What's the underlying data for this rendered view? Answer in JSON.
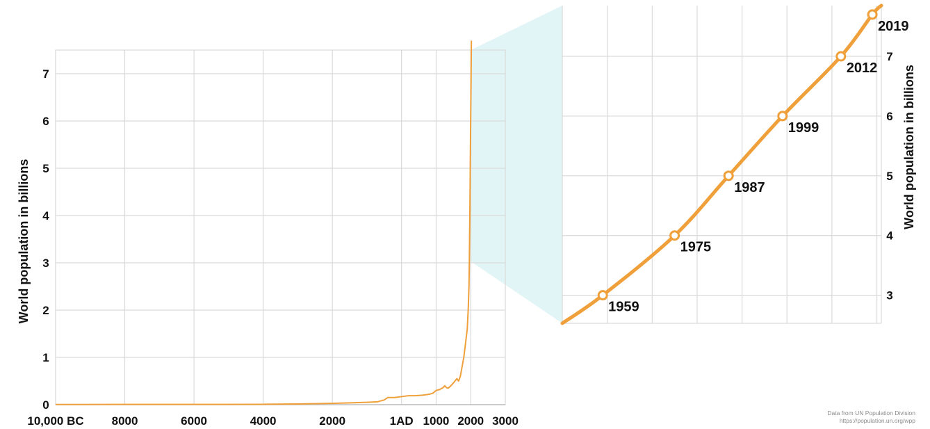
{
  "chart_data": [
    {
      "type": "line",
      "xlabel": "",
      "ylabel": "World population in billions",
      "x_tick_labels": [
        "10,000 BC",
        "8000",
        "6000",
        "4000",
        "2000",
        "1AD",
        "1000",
        "2000",
        "3000"
      ],
      "x_ticks": [
        -10000,
        -8000,
        -6000,
        -4000,
        -2000,
        0,
        1000,
        2000,
        3000
      ],
      "y_ticks": [
        0,
        1,
        2,
        3,
        4,
        5,
        6,
        7
      ],
      "xlim": [
        -10000,
        3000
      ],
      "ylim": [
        0,
        7.5
      ],
      "grid": true,
      "line_color": "#f0a03a",
      "series": [
        {
          "x": [
            -10000,
            -8000,
            -6000,
            -5000,
            -4000,
            -3000,
            -2000,
            -1000,
            -700,
            -500,
            -400,
            -200,
            0,
            200,
            400,
            600,
            700,
            800,
            900,
            1000,
            1100,
            1200,
            1250,
            1300,
            1350,
            1400,
            1500,
            1600,
            1650,
            1700,
            1750,
            1800,
            1850,
            1900,
            1927,
            1950,
            1960,
            1970,
            1980,
            1990,
            2000,
            2010,
            2019
          ],
          "values": [
            0.004,
            0.005,
            0.005,
            0.006,
            0.008,
            0.015,
            0.027,
            0.05,
            0.06,
            0.1,
            0.15,
            0.15,
            0.17,
            0.19,
            0.19,
            0.2,
            0.21,
            0.22,
            0.24,
            0.3,
            0.32,
            0.36,
            0.4,
            0.36,
            0.35,
            0.38,
            0.46,
            0.55,
            0.5,
            0.6,
            0.8,
            1.0,
            1.3,
            1.6,
            2.0,
            2.5,
            3.0,
            3.7,
            4.4,
            5.3,
            6.1,
            6.9,
            7.7
          ]
        }
      ]
    },
    {
      "type": "line",
      "xlabel": "",
      "ylabel": "World population in billions",
      "y_ticks": [
        3,
        4,
        5,
        6,
        7
      ],
      "xlim": [
        1950,
        2021
      ],
      "ylim": [
        2.53,
        7.85
      ],
      "grid": true,
      "line_color": "#f0a03a",
      "zoom_band_color": "#e1f4f6",
      "series": [
        {
          "x": [
            1950,
            1959,
            1975,
            1987,
            1999,
            2012,
            2019,
            2021
          ],
          "values": [
            2.53,
            3.0,
            4.0,
            5.0,
            6.0,
            7.0,
            7.7,
            7.85
          ]
        }
      ],
      "milestones": [
        {
          "label": "1959",
          "x": 1959,
          "y": 3
        },
        {
          "label": "1975",
          "x": 1975,
          "y": 4
        },
        {
          "label": "1987",
          "x": 1987,
          "y": 5
        },
        {
          "label": "1999",
          "x": 1999,
          "y": 6
        },
        {
          "label": "2012",
          "x": 2012,
          "y": 7
        },
        {
          "label": "2019",
          "x": 2019,
          "y": 7.7
        }
      ]
    }
  ],
  "source": {
    "line1": "Data from UN Population Division",
    "line2": "https://population.un.org/wpp"
  }
}
